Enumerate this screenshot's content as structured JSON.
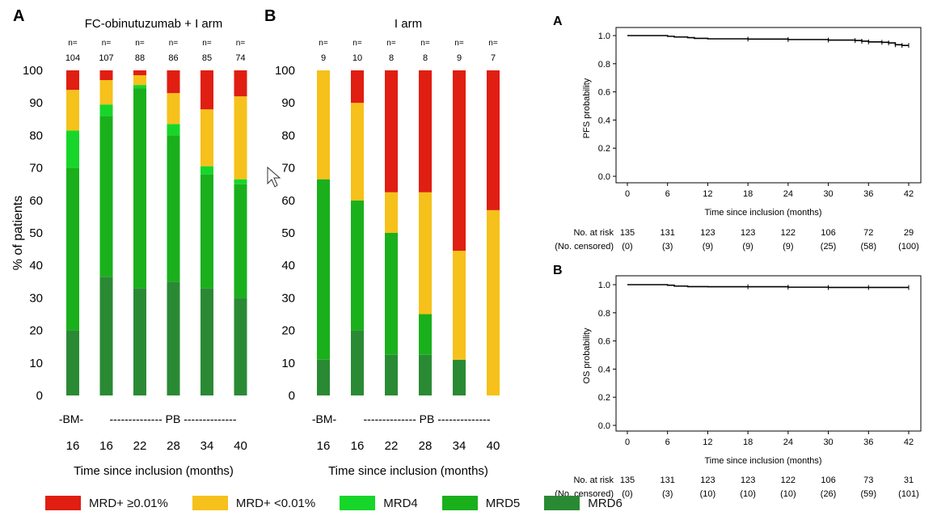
{
  "legend": [
    {
      "label": "MRD+ ≥0.01%",
      "color": "#e01e12"
    },
    {
      "label": "MRD+ <0.01%",
      "color": "#f6c11a"
    },
    {
      "label": "MRD4",
      "color": "#17d62a"
    },
    {
      "label": "MRD5",
      "color": "#1ab01c"
    },
    {
      "label": "MRD6",
      "color": "#2a8a34"
    }
  ],
  "chart_data": [
    {
      "type": "bar",
      "stacked": true,
      "panel_letter": "A",
      "title": "FC-obinutuzumab + I arm",
      "ylabel": "% of patients",
      "xlabel": "Time since inclusion (months)",
      "ylim": [
        0,
        100
      ],
      "yticks": [
        0,
        10,
        20,
        30,
        40,
        50,
        60,
        70,
        80,
        90,
        100
      ],
      "categories": [
        "16",
        "16",
        "22",
        "28",
        "34",
        "40"
      ],
      "n_prefix": "n=",
      "n": [
        "104",
        "107",
        "88",
        "86",
        "85",
        "74"
      ],
      "sample_labels": {
        "bm": "-BM-",
        "pb": "-------------- PB --------------"
      },
      "series": [
        {
          "name": "MRD6",
          "values": [
            20,
            36.5,
            33,
            35,
            33,
            30
          ]
        },
        {
          "name": "MRD5",
          "values": [
            50,
            49.5,
            61.5,
            45,
            35,
            35
          ]
        },
        {
          "name": "MRD4",
          "values": [
            11.5,
            3.5,
            1,
            3.5,
            2.5,
            1.5
          ]
        },
        {
          "name": "MRD+ <0.01%",
          "values": [
            12.5,
            7.5,
            3,
            9.5,
            17.5,
            25.5
          ]
        },
        {
          "name": "MRD+ ≥0.01%",
          "values": [
            6,
            3,
            1.5,
            7,
            12,
            8
          ]
        }
      ]
    },
    {
      "type": "bar",
      "stacked": true,
      "panel_letter": "B",
      "title": "I arm",
      "ylabel": "",
      "xlabel": "Time since inclusion (months)",
      "ylim": [
        0,
        100
      ],
      "yticks": [
        0,
        10,
        20,
        30,
        40,
        50,
        60,
        70,
        80,
        90,
        100
      ],
      "categories": [
        "16",
        "16",
        "22",
        "28",
        "34",
        "40"
      ],
      "n_prefix": "n=",
      "n": [
        "9",
        "10",
        "8",
        "8",
        "9",
        "7"
      ],
      "sample_labels": {
        "bm": "-BM-",
        "pb": "-------------- PB --------------"
      },
      "series": [
        {
          "name": "MRD6",
          "values": [
            11,
            20,
            12.5,
            12.5,
            11,
            0
          ]
        },
        {
          "name": "MRD5",
          "values": [
            55.5,
            40,
            37.5,
            12.5,
            0,
            0
          ]
        },
        {
          "name": "MRD4",
          "values": [
            0,
            0,
            0,
            0,
            0,
            0
          ]
        },
        {
          "name": "MRD+ <0.01%",
          "values": [
            33.5,
            30,
            12.5,
            37.5,
            33.5,
            57
          ]
        },
        {
          "name": "MRD+ ≥0.01%",
          "values": [
            0,
            10,
            37.5,
            37.5,
            55.5,
            43
          ]
        }
      ]
    },
    {
      "type": "line",
      "panel_letter": "A",
      "ylabel": "PFS probability",
      "xlabel": "Time since inclusion (months)",
      "xlim": [
        0,
        42
      ],
      "ylim": [
        0,
        1
      ],
      "xticks": [
        0,
        6,
        12,
        18,
        24,
        30,
        36,
        42
      ],
      "ytick_labels": [
        "0.0",
        "0.2",
        "0.4",
        "0.6",
        "0.8",
        "1.0"
      ],
      "x": [
        0,
        3,
        5,
        6,
        7,
        9,
        10,
        12,
        18,
        24,
        30,
        34,
        35,
        36,
        38,
        39,
        40,
        41,
        42
      ],
      "y": [
        1.0,
        1.0,
        1.0,
        0.995,
        0.99,
        0.985,
        0.98,
        0.977,
        0.975,
        0.972,
        0.968,
        0.965,
        0.96,
        0.955,
        0.952,
        0.948,
        0.935,
        0.93,
        0.93
      ],
      "risk_label": "No. at risk",
      "censored_label": "(No. censored)",
      "at_risk": [
        "135",
        "131",
        "123",
        "123",
        "122",
        "106",
        "72",
        "29"
      ],
      "censored": [
        "(0)",
        "(3)",
        "(9)",
        "(9)",
        "(9)",
        "(25)",
        "(58)",
        "(100)"
      ]
    },
    {
      "type": "line",
      "panel_letter": "B",
      "ylabel": "OS probability",
      "xlabel": "Time since inclusion (months)",
      "xlim": [
        0,
        42
      ],
      "ylim": [
        0,
        1
      ],
      "xticks": [
        0,
        6,
        12,
        18,
        24,
        30,
        36,
        42
      ],
      "ytick_labels": [
        "0.0",
        "0.2",
        "0.4",
        "0.6",
        "0.8",
        "1.0"
      ],
      "x": [
        0,
        5,
        6,
        7,
        9,
        12,
        18,
        24,
        30,
        36,
        42
      ],
      "y": [
        1.0,
        1.0,
        0.996,
        0.99,
        0.986,
        0.985,
        0.985,
        0.982,
        0.98,
        0.98,
        0.98
      ],
      "risk_label": "No. at risk",
      "censored_label": "(No. censored)",
      "at_risk": [
        "135",
        "131",
        "123",
        "123",
        "122",
        "106",
        "73",
        "31"
      ],
      "censored": [
        "(0)",
        "(3)",
        "(10)",
        "(10)",
        "(10)",
        "(26)",
        "(59)",
        "(101)"
      ]
    }
  ]
}
